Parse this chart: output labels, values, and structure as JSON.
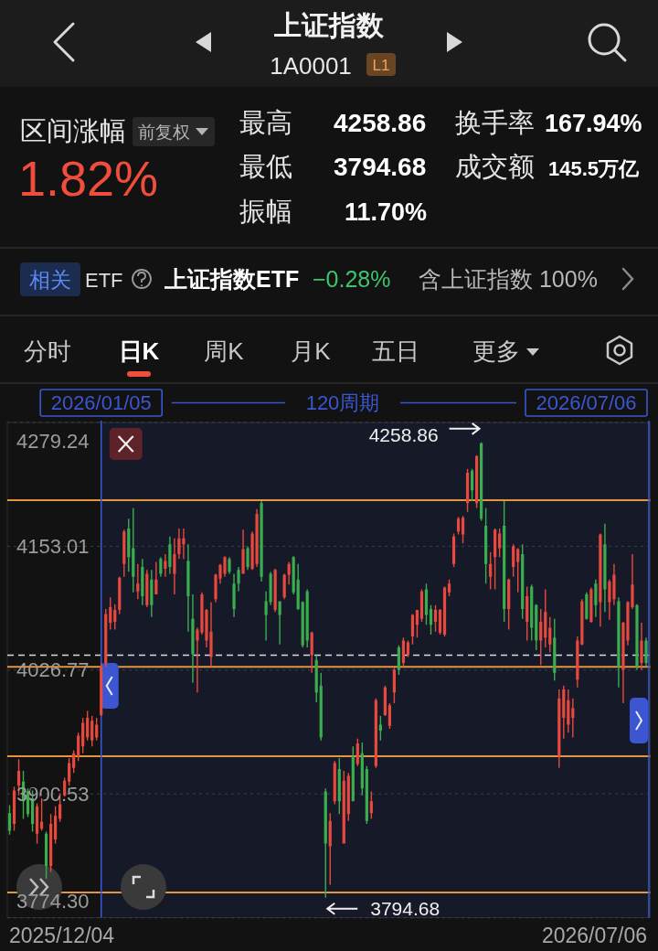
{
  "chart_data": {
    "type": "candlestick",
    "title": "上证指数",
    "subtitle": "1A0001",
    "categories": [
      null,
      null,
      null,
      null,
      null,
      null,
      null,
      null,
      null,
      null,
      null,
      null,
      null,
      null,
      null,
      null,
      null,
      null,
      null,
      null,
      "2026/01/05",
      null,
      null,
      null,
      null,
      null,
      null,
      null,
      null,
      null,
      null,
      null,
      null,
      null,
      null,
      null,
      null,
      null,
      null,
      null,
      null,
      null,
      null,
      null,
      null,
      null,
      null,
      null,
      null,
      null,
      null,
      null,
      null,
      null,
      null,
      null,
      null,
      null,
      null,
      null,
      null,
      null,
      null,
      null,
      null,
      null,
      null,
      null,
      null,
      null,
      null,
      null,
      null,
      null,
      null,
      null,
      null,
      null,
      null,
      null,
      null,
      null,
      null,
      null,
      null,
      null,
      null,
      null,
      null,
      null,
      null,
      null,
      null,
      null,
      null,
      null,
      null,
      null,
      null,
      null,
      null,
      null,
      null,
      null,
      null,
      null,
      null,
      null,
      null,
      null,
      null,
      null,
      null,
      null,
      null,
      null,
      null,
      null,
      null,
      null,
      null,
      null,
      null,
      null,
      null,
      null,
      null,
      null,
      null,
      null,
      null,
      null,
      null,
      null,
      null,
      null,
      null,
      null,
      null,
      null
    ],
    "ohlc": [
      [
        3881,
        3889,
        3859,
        3863
      ],
      [
        3870,
        3908,
        3863,
        3904
      ],
      [
        3909,
        3936,
        3899,
        3924
      ],
      [
        3913,
        3924,
        3875,
        3893
      ],
      [
        3903,
        3906,
        3877,
        3880
      ],
      [
        3896,
        3904,
        3862,
        3870
      ],
      [
        3860,
        3891,
        3850,
        3888
      ],
      [
        3865,
        3896,
        3863,
        3872
      ],
      [
        3860,
        3862,
        3814,
        3827
      ],
      [
        3827,
        3880,
        3821,
        3870
      ],
      [
        3854,
        3888,
        3850,
        3878
      ],
      [
        3875,
        3901,
        3872,
        3890
      ],
      [
        3899,
        3917,
        3898,
        3914
      ],
      [
        3913,
        3937,
        3909,
        3932
      ],
      [
        3927,
        3945,
        3922,
        3942
      ],
      [
        3939,
        3963,
        3934,
        3960
      ],
      [
        3949,
        3978,
        3942,
        3973
      ],
      [
        3958,
        3985,
        3955,
        3978
      ],
      [
        3955,
        3980,
        3949,
        3975
      ],
      [
        3958,
        3978,
        3955,
        3971
      ],
      [
        3981,
        4034,
        3980,
        4030
      ],
      [
        4034,
        4089,
        4030,
        4084
      ],
      [
        4075,
        4101,
        4068,
        4091
      ],
      [
        4076,
        4094,
        4068,
        4088
      ],
      [
        4088,
        4122,
        4084,
        4121
      ],
      [
        4135,
        4170,
        4122,
        4168
      ],
      [
        4171,
        4181,
        4127,
        4142
      ],
      [
        4151,
        4192,
        4106,
        4122
      ],
      [
        4107,
        4135,
        4099,
        4115
      ],
      [
        4132,
        4140,
        4093,
        4102
      ],
      [
        4093,
        4129,
        4091,
        4125
      ],
      [
        4119,
        4129,
        4081,
        4093
      ],
      [
        4104,
        4137,
        4104,
        4119
      ],
      [
        4140,
        4142,
        4122,
        4125
      ],
      [
        4130,
        4145,
        4122,
        4138
      ],
      [
        4155,
        4163,
        4125,
        4132
      ],
      [
        4125,
        4161,
        4104,
        4145
      ],
      [
        4145,
        4171,
        4140,
        4161
      ],
      [
        4155,
        4171,
        4140,
        4161
      ],
      [
        4138,
        4155,
        4066,
        4102
      ],
      [
        4079,
        4104,
        4014,
        4043
      ],
      [
        4057,
        4070,
        4004,
        4068
      ],
      [
        4065,
        4106,
        4063,
        4104
      ],
      [
        4057,
        4089,
        4050,
        4088
      ],
      [
        4040,
        4096,
        4030,
        4066
      ],
      [
        4099,
        4125,
        4096,
        4124
      ],
      [
        4120,
        4135,
        4115,
        4134
      ],
      [
        4125,
        4143,
        4122,
        4142
      ],
      [
        4140,
        4142,
        4125,
        4127
      ],
      [
        4115,
        4125,
        4081,
        4089
      ],
      [
        4129,
        4132,
        4107,
        4115
      ],
      [
        4125,
        4170,
        4125,
        4150
      ],
      [
        4151,
        4153,
        4129,
        4132
      ],
      [
        4130,
        4168,
        4129,
        4166
      ],
      [
        4135,
        4191,
        4132,
        4186
      ],
      [
        4197,
        4199,
        4117,
        4122
      ],
      [
        4097,
        4107,
        4057,
        4083
      ],
      [
        4125,
        4127,
        4093,
        4096
      ],
      [
        4088,
        4130,
        4086,
        4129
      ],
      [
        4097,
        4097,
        4053,
        4083
      ],
      [
        4101,
        4125,
        4099,
        4124
      ],
      [
        4124,
        4137,
        4114,
        4135
      ],
      [
        4142,
        4143,
        4104,
        4106
      ],
      [
        4119,
        4135,
        4088,
        4089
      ],
      [
        4096,
        4097,
        4050,
        4052
      ],
      [
        4107,
        4109,
        4050,
        4057
      ],
      [
        4042,
        4066,
        4024,
        4065
      ],
      [
        4037,
        4042,
        3994,
        4004
      ],
      [
        4011,
        4024,
        3955,
        3958
      ],
      [
        3903,
        3906,
        3794.68,
        3850
      ],
      [
        3847,
        3881,
        3808,
        3873
      ],
      [
        3893,
        3934,
        3890,
        3932
      ],
      [
        3926,
        3937,
        3880,
        3893
      ],
      [
        3850,
        3924,
        3850,
        3914
      ],
      [
        3880,
        3922,
        3873,
        3919
      ],
      [
        3939,
        3949,
        3893,
        3893
      ],
      [
        3931,
        3957,
        3929,
        3952
      ],
      [
        3942,
        3953,
        3899,
        3906
      ],
      [
        3926,
        3929,
        3870,
        3873
      ],
      [
        3881,
        3903,
        3875,
        3893
      ],
      [
        3929,
        3998,
        3927,
        3996
      ],
      [
        3971,
        3980,
        3955,
        3965
      ],
      [
        3981,
        4011,
        3980,
        4009
      ],
      [
        3970,
        3993,
        3967,
        3991
      ],
      [
        4004,
        4029,
        3993,
        4027
      ],
      [
        4050,
        4052,
        4022,
        4027
      ],
      [
        4034,
        4060,
        4030,
        4057
      ],
      [
        4042,
        4057,
        4040,
        4055
      ],
      [
        4061,
        4084,
        4053,
        4083
      ],
      [
        4073,
        4088,
        4060,
        4088
      ],
      [
        4079,
        4109,
        4076,
        4107
      ],
      [
        4109,
        4115,
        4073,
        4083
      ],
      [
        4089,
        4093,
        4063,
        4073
      ],
      [
        4076,
        4093,
        4066,
        4088
      ],
      [
        4065,
        4089,
        4063,
        4088
      ],
      [
        4063,
        4112,
        4061,
        4111
      ],
      [
        4106,
        4119,
        4102,
        4115
      ],
      [
        4135,
        4166,
        4132,
        4163
      ],
      [
        4168,
        4183,
        4165,
        4181
      ],
      [
        4165,
        4184,
        4156,
        4182
      ],
      [
        4197,
        4232,
        4188,
        4228
      ],
      [
        4230,
        4232,
        4199,
        4210
      ],
      [
        4197,
        4246,
        4192,
        4245
      ],
      [
        4258,
        4258.86,
        4179,
        4181
      ],
      [
        4174,
        4192,
        4115,
        4135
      ],
      [
        4122,
        4147,
        4109,
        4135
      ],
      [
        4142,
        4171,
        4109,
        4170
      ],
      [
        4151,
        4171,
        4142,
        4166
      ],
      [
        4174,
        4199,
        4076,
        4089
      ],
      [
        4089,
        4120,
        4068,
        4119
      ],
      [
        4132,
        4155,
        4122,
        4153
      ],
      [
        4137,
        4151,
        4106,
        4150
      ],
      [
        4145,
        4155,
        4079,
        4089
      ],
      [
        4076,
        4112,
        4057,
        4102
      ],
      [
        4112,
        4114,
        4057,
        4070
      ],
      [
        4093,
        4094,
        4047,
        4057
      ],
      [
        4057,
        4089,
        4032,
        4076
      ],
      [
        4060,
        4109,
        4050,
        4086
      ],
      [
        4053,
        4081,
        4045,
        4070
      ],
      [
        4060,
        4079,
        4016,
        4024
      ],
      [
        3939,
        4007,
        3927,
        3998
      ],
      [
        3978,
        4011,
        3957,
        4007
      ],
      [
        3971,
        4007,
        3963,
        3996
      ],
      [
        3978,
        3998,
        3958,
        3988
      ],
      [
        4017,
        4061,
        4009,
        4057
      ],
      [
        4053,
        4099,
        4052,
        4097
      ],
      [
        4104,
        4106,
        4078,
        4079
      ],
      [
        4076,
        4111,
        4075,
        4109
      ],
      [
        4115,
        4119,
        4081,
        4093
      ],
      [
        4096,
        4166,
        4071,
        4165
      ],
      [
        4155,
        4176,
        4086,
        4109
      ],
      [
        4096,
        4119,
        4078,
        4117
      ],
      [
        4099,
        4135,
        4093,
        4124
      ],
      [
        4097,
        4101,
        4009,
        4030
      ],
      [
        4027,
        4076,
        3993,
        4075
      ],
      [
        4057,
        4097,
        4052,
        4096
      ],
      [
        4091,
        4145,
        4089,
        4114
      ],
      [
        4093,
        4094,
        4027,
        4030
      ],
      [
        4034,
        4075,
        4027,
        4057
      ],
      [
        4057,
        4060,
        4030,
        4034
      ]
    ],
    "colors": [
      "#3aae4f",
      "#e8493f",
      "#e8493f",
      "#3aae4f",
      "#3aae4f",
      "#3aae4f",
      "#e8493f",
      "#e8493f",
      "#3aae4f",
      "#e8493f",
      "#e8493f",
      "#e8493f",
      "#e8493f",
      "#e8493f",
      "#e8493f",
      "#e8493f",
      "#e8493f",
      "#e8493f",
      "#e8493f",
      "#e8493f",
      "#e8493f",
      "#e8493f",
      "#e8493f",
      "#e8493f",
      "#e8493f",
      "#e8493f",
      "#3aae4f",
      "#3aae4f",
      "#e8493f",
      "#3aae4f",
      "#e8493f",
      "#3aae4f",
      "#e8493f",
      "#3aae4f",
      "#e8493f",
      "#3aae4f",
      "#e8493f",
      "#e8493f",
      "#e8493f",
      "#3aae4f",
      "#3aae4f",
      "#e8493f",
      "#e8493f",
      "#e8493f",
      "#e8493f",
      "#e8493f",
      "#e8493f",
      "#e8493f",
      "#3aae4f",
      "#3aae4f",
      "#3aae4f",
      "#e8493f",
      "#3aae4f",
      "#e8493f",
      "#e8493f",
      "#3aae4f",
      "#3aae4f",
      "#3aae4f",
      "#e8493f",
      "#3aae4f",
      "#e8493f",
      "#e8493f",
      "#3aae4f",
      "#3aae4f",
      "#3aae4f",
      "#3aae4f",
      "#e8493f",
      "#3aae4f",
      "#3aae4f",
      "#3aae4f",
      "#e8493f",
      "#e8493f",
      "#3aae4f",
      "#e8493f",
      "#e8493f",
      "#3aae4f",
      "#e8493f",
      "#3aae4f",
      "#3aae4f",
      "#e8493f",
      "#e8493f",
      "#3aae4f",
      "#e8493f",
      "#e8493f",
      "#e8493f",
      "#3aae4f",
      "#e8493f",
      "#e8493f",
      "#e8493f",
      "#e8493f",
      "#e8493f",
      "#3aae4f",
      "#3aae4f",
      "#e8493f",
      "#e8493f",
      "#e8493f",
      "#e8493f",
      "#e8493f",
      "#e8493f",
      "#e8493f",
      "#e8493f",
      "#3aae4f",
      "#e8493f",
      "#3aae4f",
      "#3aae4f",
      "#e8493f",
      "#e8493f",
      "#e8493f",
      "#3aae4f",
      "#e8493f",
      "#e8493f",
      "#e8493f",
      "#3aae4f",
      "#e8493f",
      "#3aae4f",
      "#3aae4f",
      "#e8493f",
      "#e8493f",
      "#e8493f",
      "#3aae4f",
      "#e8493f",
      "#e8493f",
      "#e8493f",
      "#e8493f",
      "#e8493f",
      "#e8493f",
      "#3aae4f",
      "#e8493f",
      "#3aae4f",
      "#e8493f",
      "#3aae4f",
      "#e8493f",
      "#e8493f",
      "#3aae4f",
      "#e8493f",
      "#e8493f",
      "#e8493f",
      "#3aae4f",
      "#e8493f",
      "#3aae4f"
    ],
    "ylim": [
      3774.3,
      4279.24
    ],
    "yticks": [
      4279.24,
      4153.01,
      4026.77,
      3900.53,
      {
        "value": 3774.3,
        "label": "3774.30"
      }
    ],
    "grid": "y",
    "ref_lines": [
      {
        "axis": "y",
        "value": 4200,
        "color": "#e3963f"
      },
      {
        "axis": "y",
        "value": 4030,
        "color": "#e3963f"
      },
      {
        "axis": "y",
        "value": 3939,
        "color": "#e3963f"
      },
      {
        "axis": "y",
        "value": 3800,
        "color": "#e3963f"
      },
      {
        "axis": "y",
        "value": 4042,
        "color": "#d9d9d9",
        "line_style": "dashed"
      },
      {
        "axis": "x",
        "value": "2026/01/05",
        "color": "#3b56d0"
      }
    ],
    "annotations": [
      "4258.86",
      "3794.68",
      "120周期",
      "2026/07/06",
      "2025/12/04",
      "2026/07/06",
      "L1",
      "区间涨幅",
      "前复权",
      "1.82%",
      "最高",
      "4258.86",
      "最低",
      "3794.68",
      "振幅",
      "11.70%",
      "换手率",
      "167.94%",
      "成交额",
      "145.5万亿",
      "相关",
      "ETF",
      "上证指数ETF",
      "−0.28%",
      "含上证指数 100%",
      "分时",
      "日K",
      "周K",
      "月K",
      "五日",
      "更多"
    ]
  }
}
